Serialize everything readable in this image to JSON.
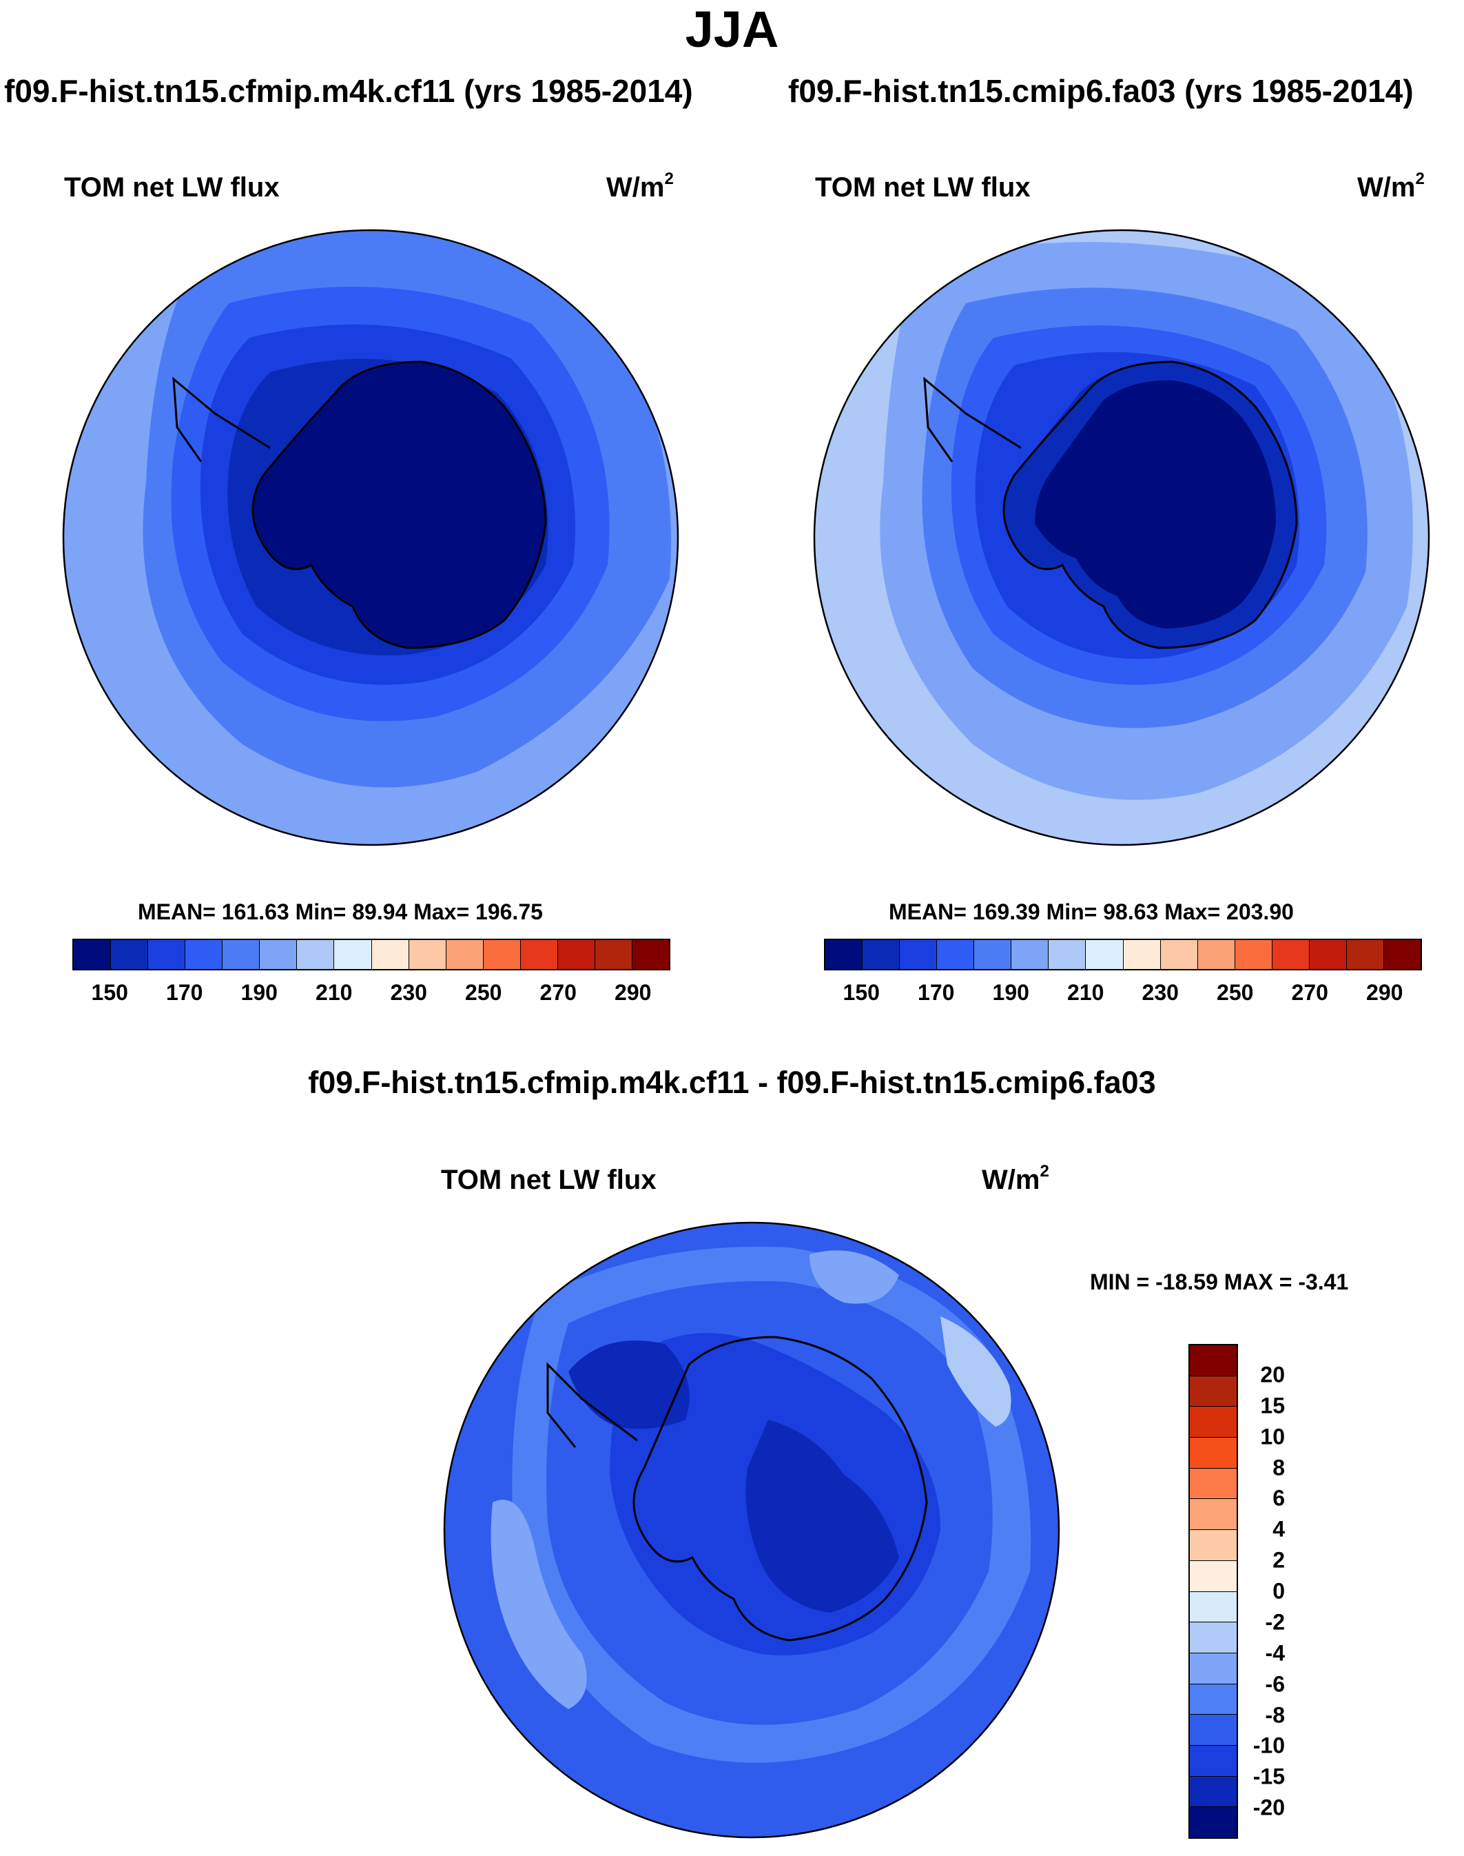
{
  "season": "JJA",
  "panels": {
    "left": {
      "case_title": "f09.F-hist.tn15.cfmip.m4k.cf11 (yrs 1985-2014)",
      "label": "TOM net LW flux",
      "units": "W/m",
      "units_sup": "2",
      "stats": "MEAN= 161.63  Min=  89.94  Max= 196.75"
    },
    "right": {
      "case_title": "f09.F-hist.tn15.cmip6.fa03 (yrs 1985-2014)",
      "label": "TOM net LW flux",
      "units": "W/m",
      "units_sup": "2",
      "stats": "MEAN= 169.39  Min=  98.63  Max= 203.90"
    },
    "diff": {
      "title": "f09.F-hist.tn15.cfmip.m4k.cf11 - f09.F-hist.tn15.cmip6.fa03",
      "label": "TOM net LW flux",
      "units": "W/m",
      "units_sup": "2",
      "stats": "MIN = -18.59 MAX =  -3.41"
    }
  },
  "colorbar_main": {
    "colors": [
      "#000c7d",
      "#0a2bb8",
      "#1a3fe0",
      "#2f5cf5",
      "#4c7cf5",
      "#7da4f7",
      "#aec8f7",
      "#ddeefc",
      "#fdebd8",
      "#fcc8a6",
      "#fca277",
      "#fb6c3d",
      "#e6381a",
      "#c21c0c",
      "#b0260c",
      "#800000"
    ],
    "tick_labels": [
      "150",
      "170",
      "190",
      "210",
      "230",
      "250",
      "270",
      "290"
    ]
  },
  "colorbar_diff": {
    "colors": [
      "#800000",
      "#b0260c",
      "#d8300a",
      "#f54f1a",
      "#fb7a48",
      "#fca478",
      "#fdcba8",
      "#fdeedf",
      "#d7ebfb",
      "#afcaf7",
      "#7ea5f7",
      "#4f7ff5",
      "#2f5ced",
      "#1a3fde",
      "#0b28b8",
      "#000c7d"
    ],
    "tick_labels": [
      "20",
      "15",
      "10",
      "8",
      "6",
      "4",
      "2",
      "0",
      "-2",
      "-4",
      "-6",
      "-8",
      "-10",
      "-15",
      "-20"
    ]
  },
  "map_colors": {
    "m150": "#000c7d",
    "m160": "#0a2bb8",
    "m170": "#1a3fe0",
    "m180": "#2f5cf5",
    "m190": "#4c7cf5",
    "m200": "#7da4f7",
    "m210": "#aec8f7",
    "d15": "#0b28b8",
    "d10": "#1a3fde",
    "d8": "#2f5ced",
    "d6": "#4f7ff5",
    "d4": "#7ea5f7",
    "d2": "#afcaf7"
  }
}
